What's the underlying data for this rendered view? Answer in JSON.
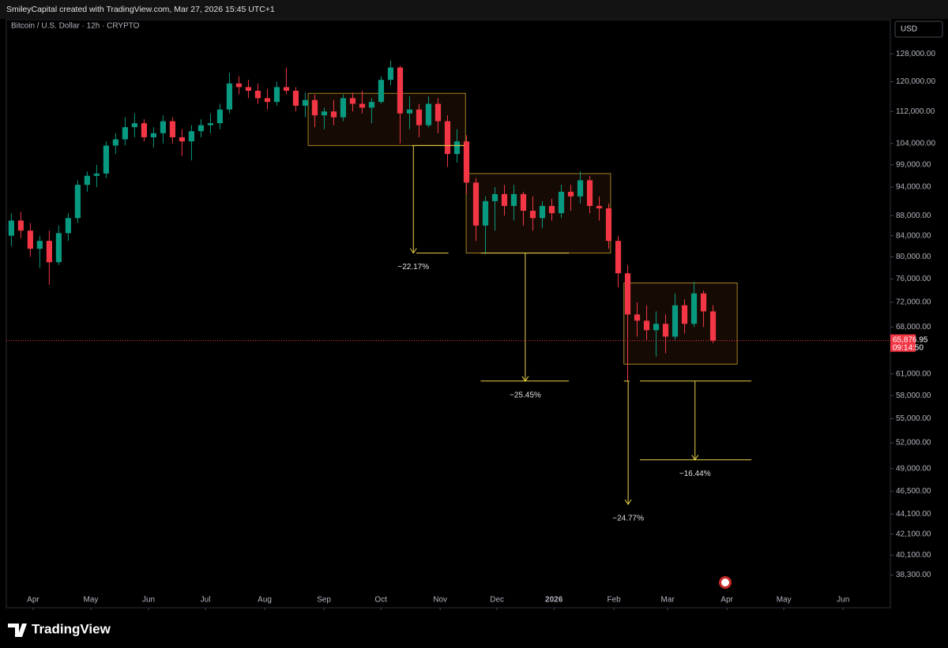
{
  "header": "SmileyCapital created with TradingView.com, Mar 27, 2026 15:45 UTC+1",
  "brand": "TradingView",
  "currency": "USD",
  "chart_data": {
    "type": "candlestick",
    "title": "Bitcoin / U.S. Dollar · 12h · CRYPTO",
    "log_scale": true,
    "up_color": "#089981",
    "down_color": "#f23645",
    "x": [
      0,
      1,
      2,
      3,
      4,
      5,
      6,
      7,
      8,
      9,
      10,
      11,
      12,
      13,
      14,
      15,
      16,
      17,
      18,
      19,
      20,
      21,
      22,
      23,
      24,
      25,
      26,
      27,
      28,
      29,
      30,
      31,
      32,
      33,
      34,
      35,
      36,
      37,
      38,
      39,
      40,
      41,
      42,
      43,
      44,
      45,
      46,
      47,
      48,
      49,
      50,
      51,
      52,
      53,
      54,
      55,
      56,
      57,
      58,
      59,
      60,
      61,
      62,
      63,
      64,
      65,
      66,
      67,
      68,
      69,
      70,
      71,
      72,
      73,
      74
    ],
    "open": [
      84000,
      87000,
      85000,
      81500,
      83000,
      79000,
      84500,
      87500,
      94500,
      96500,
      97000,
      103500,
      105000,
      108000,
      109000,
      105500,
      106500,
      109500,
      105500,
      104500,
      107000,
      108500,
      109000,
      112500,
      119500,
      118500,
      117500,
      115500,
      114500,
      118500,
      117500,
      113500,
      115000,
      111000,
      112000,
      110500,
      115500,
      114000,
      113000,
      114500,
      120500,
      124000,
      111500,
      112500,
      108500,
      114000,
      109500,
      101500,
      104500,
      95000,
      86000,
      91000,
      92500,
      90000,
      92500,
      89000,
      87500,
      90000,
      88500,
      93000,
      92000,
      95500,
      90000,
      89500,
      83000,
      77000,
      70000,
      69000,
      67500,
      68500,
      66500,
      71500,
      68500,
      73500,
      70500
    ],
    "high": [
      88500,
      88800,
      86500,
      84000,
      85000,
      86000,
      88500,
      95500,
      97500,
      99000,
      104500,
      106500,
      110500,
      111500,
      110000,
      108000,
      111000,
      110500,
      107500,
      108500,
      110000,
      111500,
      114000,
      122500,
      121500,
      120500,
      119500,
      118000,
      120000,
      124000,
      118500,
      117000,
      116500,
      113000,
      115000,
      116500,
      117000,
      117500,
      115500,
      121500,
      126000,
      124500,
      116000,
      114000,
      116000,
      115500,
      111000,
      107500,
      106000,
      96000,
      92000,
      94000,
      94500,
      94500,
      93000,
      92000,
      91000,
      91500,
      94500,
      94500,
      97500,
      96500,
      92000,
      90500,
      84000,
      78500,
      72000,
      71500,
      70500,
      70000,
      73500,
      72500,
      75500,
      74000,
      71500
    ],
    "low": [
      82000,
      83500,
      80000,
      78000,
      75000,
      78500,
      83000,
      86500,
      93000,
      94000,
      96000,
      101500,
      103500,
      105500,
      104500,
      103000,
      104000,
      104000,
      101000,
      100000,
      105500,
      106500,
      107500,
      111500,
      116500,
      115500,
      114000,
      112500,
      113500,
      116500,
      112000,
      110500,
      108000,
      107500,
      108500,
      109500,
      112000,
      111500,
      109000,
      114000,
      119000,
      104000,
      107500,
      105500,
      108000,
      106500,
      98500,
      99500,
      92500,
      83000,
      80500,
      85000,
      88000,
      87000,
      86000,
      85000,
      85500,
      87000,
      87500,
      89000,
      90500,
      88500,
      87000,
      81500,
      74500,
      60000,
      66500,
      66000,
      63500,
      64000,
      66000,
      67000,
      68000,
      68000,
      65500
    ],
    "close": [
      87000,
      85000,
      81500,
      83000,
      79000,
      84500,
      87500,
      94500,
      96500,
      97000,
      103500,
      105000,
      108000,
      109000,
      105500,
      106500,
      109500,
      105500,
      104500,
      107000,
      108500,
      109000,
      112500,
      119500,
      118500,
      117500,
      115500,
      114500,
      118500,
      117500,
      113500,
      115000,
      111000,
      112000,
      110500,
      115500,
      114000,
      113000,
      114500,
      120500,
      124000,
      111500,
      112500,
      108500,
      114000,
      109500,
      101500,
      104500,
      95000,
      86000,
      91000,
      92500,
      90000,
      92500,
      89000,
      87500,
      90000,
      88500,
      93000,
      92000,
      95500,
      90000,
      89500,
      83000,
      77000,
      70000,
      69000,
      67500,
      68500,
      66500,
      71500,
      68500,
      73500,
      70500,
      65876.95
    ],
    "xlim": [
      -0.53,
      92.7
    ],
    "ylim": [
      35500,
      138500
    ],
    "xticks": [
      {
        "value": 2.3,
        "label": "Apr"
      },
      {
        "value": 8.38,
        "label": "May"
      },
      {
        "value": 14.47,
        "label": "Jun"
      },
      {
        "value": 20.47,
        "label": "Jul"
      },
      {
        "value": 26.72,
        "label": "Aug"
      },
      {
        "value": 32.97,
        "label": "Sep"
      },
      {
        "value": 38.97,
        "label": "Oct"
      },
      {
        "value": 45.22,
        "label": "Nov"
      },
      {
        "value": 51.22,
        "label": "Dec"
      },
      {
        "value": 57.22,
        "label": "2026"
      },
      {
        "value": 63.55,
        "label": "Feb"
      },
      {
        "value": 69.22,
        "label": "Mar"
      },
      {
        "value": 75.47,
        "label": "Apr"
      },
      {
        "value": 81.47,
        "label": "May"
      },
      {
        "value": 87.72,
        "label": "Jun"
      }
    ],
    "yticks": [
      {
        "value": 128000,
        "label": "128,000.00"
      },
      {
        "value": 120000,
        "label": "120,000.00"
      },
      {
        "value": 112000,
        "label": "112,000.00"
      },
      {
        "value": 104000,
        "label": "104,000.00"
      },
      {
        "value": 99000,
        "label": "99,000.00"
      },
      {
        "value": 94000,
        "label": "94,000.00"
      },
      {
        "value": 88000,
        "label": "88,000.00"
      },
      {
        "value": 84000,
        "label": "84,000.00"
      },
      {
        "value": 80000,
        "label": "80,000.00"
      },
      {
        "value": 76000,
        "label": "76,000.00"
      },
      {
        "value": 72000,
        "label": "72,000.00"
      },
      {
        "value": 68000,
        "label": "68,000.00"
      },
      {
        "value": 61000,
        "label": "61,000.00"
      },
      {
        "value": 58000,
        "label": "58,000.00"
      },
      {
        "value": 55000,
        "label": "55,000.00"
      },
      {
        "value": 52000,
        "label": "52,000.00"
      },
      {
        "value": 49000,
        "label": "49,000.00"
      },
      {
        "value": 46500,
        "label": "46,500.00"
      },
      {
        "value": 44100,
        "label": "44,100.00"
      },
      {
        "value": 42100,
        "label": "42,100.00"
      },
      {
        "value": 40100,
        "label": "40,100.00"
      },
      {
        "value": 38300,
        "label": "38,300.00"
      }
    ],
    "current_price": {
      "value": 65876.95,
      "label": "65,876.95"
    },
    "countdown": "09:14:50",
    "boxes": [
      {
        "x": [
          31.3,
          47.9
        ],
        "y": [
          116800,
          103500
        ]
      },
      {
        "x": [
          47.97,
          63.2
        ],
        "y": [
          97000,
          80700
        ]
      },
      {
        "x": [
          64.6,
          76.55
        ],
        "y": [
          75300,
          62400
        ]
      }
    ],
    "measures": [
      {
        "x": 42.4,
        "from": 103500,
        "to": 80700,
        "label": "−22.17%",
        "from_span": [
          42.3,
          47.8
        ],
        "to_span": [
          42.7,
          46.1
        ]
      },
      {
        "x": 54.2,
        "from": 80700,
        "to": 60000,
        "label": "−25.45%",
        "from_span": [
          49.5,
          58.8
        ],
        "to_span": [
          49.5,
          58.8
        ]
      },
      {
        "x": 72.1,
        "from": 60000,
        "to": 50000,
        "label": "−16.44%",
        "from_span": [
          66.3,
          78.05
        ],
        "to_span": [
          66.3,
          78.05
        ]
      },
      {
        "x": 65.05,
        "from": 60000,
        "to": 45100,
        "label": "−24.77%",
        "from_span": [
          64.6,
          65.2
        ]
      }
    ]
  }
}
